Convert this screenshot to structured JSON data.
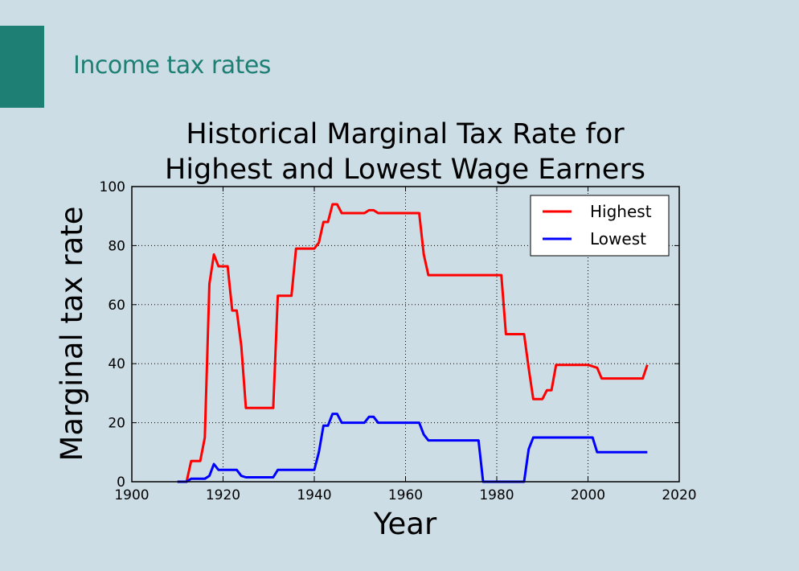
{
  "slide": {
    "title": "Income tax rates",
    "accent_color": "#1e7f74",
    "background": "#cddde6"
  },
  "chart_data": {
    "type": "line",
    "title_lines": [
      "Historical Marginal Tax Rate for",
      "Highest and Lowest Wage Earners"
    ],
    "xlabel": "Year",
    "ylabel": "Marginal tax rate",
    "xlim": [
      1900,
      2020
    ],
    "ylim": [
      0,
      100
    ],
    "xticks": [
      1900,
      1920,
      1940,
      1960,
      1980,
      2000,
      2020
    ],
    "yticks": [
      0,
      20,
      40,
      60,
      80,
      100
    ],
    "grid": true,
    "legend_position": "top-right",
    "series": [
      {
        "name": "Highest",
        "color": "#ff0000",
        "points": [
          [
            1910,
            0
          ],
          [
            1912,
            0
          ],
          [
            1913,
            7
          ],
          [
            1915,
            7
          ],
          [
            1916,
            15
          ],
          [
            1917,
            67
          ],
          [
            1918,
            77
          ],
          [
            1919,
            73
          ],
          [
            1921,
            73
          ],
          [
            1922,
            58
          ],
          [
            1923,
            58
          ],
          [
            1924,
            46
          ],
          [
            1925,
            25
          ],
          [
            1931,
            25
          ],
          [
            1932,
            63
          ],
          [
            1935,
            63
          ],
          [
            1936,
            79
          ],
          [
            1940,
            79
          ],
          [
            1941,
            81
          ],
          [
            1942,
            88
          ],
          [
            1943,
            88
          ],
          [
            1944,
            94
          ],
          [
            1945,
            94
          ],
          [
            1946,
            91
          ],
          [
            1951,
            91
          ],
          [
            1952,
            92
          ],
          [
            1953,
            92
          ],
          [
            1954,
            91
          ],
          [
            1963,
            91
          ],
          [
            1964,
            77
          ],
          [
            1965,
            70
          ],
          [
            1981,
            70
          ],
          [
            1982,
            50
          ],
          [
            1986,
            50
          ],
          [
            1987,
            38.5
          ],
          [
            1988,
            28
          ],
          [
            1990,
            28
          ],
          [
            1991,
            31
          ],
          [
            1992,
            31
          ],
          [
            1993,
            39.6
          ],
          [
            2000,
            39.6
          ],
          [
            2001,
            39.1
          ],
          [
            2002,
            38.6
          ],
          [
            2003,
            35
          ],
          [
            2012,
            35
          ],
          [
            2013,
            39.6
          ]
        ]
      },
      {
        "name": "Lowest",
        "color": "#0000ff",
        "points": [
          [
            1910,
            0
          ],
          [
            1912,
            0
          ],
          [
            1913,
            1
          ],
          [
            1916,
            1
          ],
          [
            1917,
            2
          ],
          [
            1918,
            6
          ],
          [
            1919,
            4
          ],
          [
            1923,
            4
          ],
          [
            1924,
            2
          ],
          [
            1925,
            1.5
          ],
          [
            1931,
            1.5
          ],
          [
            1932,
            4
          ],
          [
            1940,
            4
          ],
          [
            1941,
            10
          ],
          [
            1942,
            19
          ],
          [
            1943,
            19
          ],
          [
            1944,
            23
          ],
          [
            1945,
            23
          ],
          [
            1946,
            20
          ],
          [
            1951,
            20
          ],
          [
            1952,
            22
          ],
          [
            1953,
            22
          ],
          [
            1954,
            20
          ],
          [
            1963,
            20
          ],
          [
            1964,
            16
          ],
          [
            1965,
            14
          ],
          [
            1976,
            14
          ],
          [
            1977,
            0
          ],
          [
            1986,
            0
          ],
          [
            1987,
            11
          ],
          [
            1988,
            15
          ],
          [
            2001,
            15
          ],
          [
            2002,
            10
          ],
          [
            2013,
            10
          ]
        ]
      }
    ]
  }
}
